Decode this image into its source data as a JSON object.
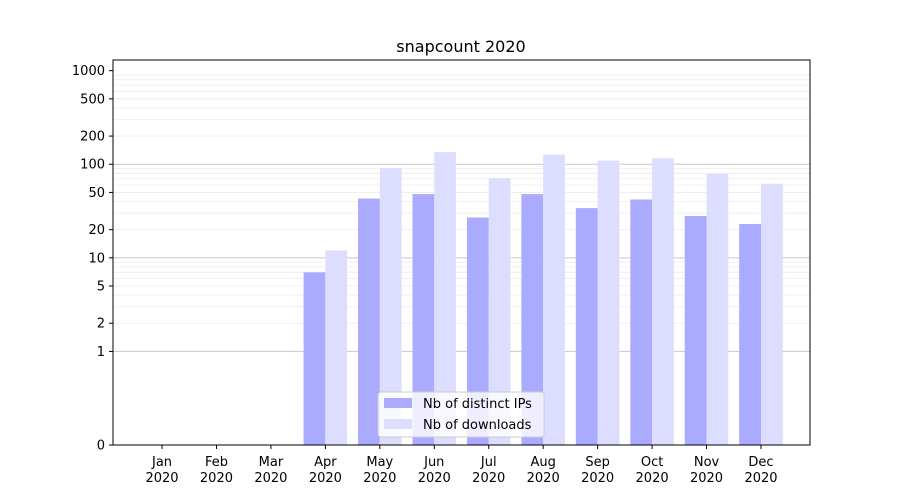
{
  "chart_data": {
    "type": "bar",
    "title": "snapcount 2020",
    "xlabel": "",
    "ylabel": "",
    "categories": [
      [
        "Jan",
        "2020"
      ],
      [
        "Feb",
        "2020"
      ],
      [
        "Mar",
        "2020"
      ],
      [
        "Apr",
        "2020"
      ],
      [
        "May",
        "2020"
      ],
      [
        "Jun",
        "2020"
      ],
      [
        "Jul",
        "2020"
      ],
      [
        "Aug",
        "2020"
      ],
      [
        "Sep",
        "2020"
      ],
      [
        "Oct",
        "2020"
      ],
      [
        "Nov",
        "2020"
      ],
      [
        "Dec",
        "2020"
      ]
    ],
    "series": [
      {
        "name": "Nb of distinct IPs",
        "color": "#aaaaff",
        "values": [
          0,
          0,
          0,
          7,
          43,
          48,
          27,
          48,
          34,
          42,
          28,
          23
        ]
      },
      {
        "name": "Nb of downloads",
        "color": "#ddddff",
        "values": [
          0,
          0,
          0,
          12,
          91,
          135,
          71,
          127,
          109,
          116,
          79,
          62
        ]
      }
    ],
    "yscale": "symlog",
    "ylim": [
      0,
      1300
    ],
    "yticks": [
      0,
      1,
      2,
      5,
      10,
      20,
      50,
      100,
      200,
      500,
      1000
    ],
    "grid": true,
    "legend_position": "lower-center"
  }
}
